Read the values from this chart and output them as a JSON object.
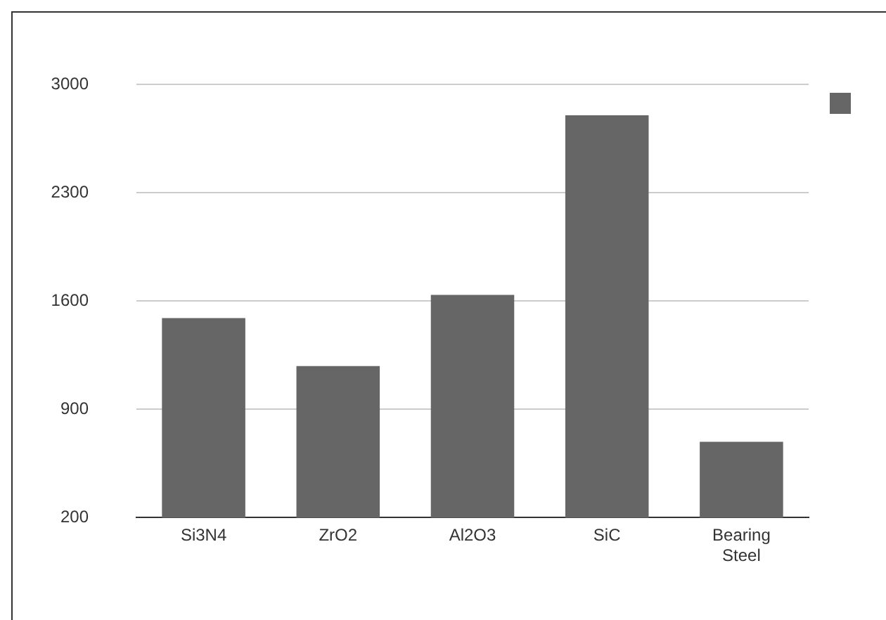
{
  "chart_data": {
    "type": "bar",
    "categories": [
      "Si3N4",
      "ZrO2",
      "Al2O3",
      "SiC",
      "Bearing Steel"
    ],
    "series": [
      {
        "color": "#666666",
        "values": [
          1490,
          1180,
          1640,
          2800,
          690
        ]
      }
    ],
    "ylim": [
      200,
      3000
    ],
    "yticks": [
      200,
      900,
      1600,
      2300,
      3000
    ],
    "grid": "y"
  }
}
